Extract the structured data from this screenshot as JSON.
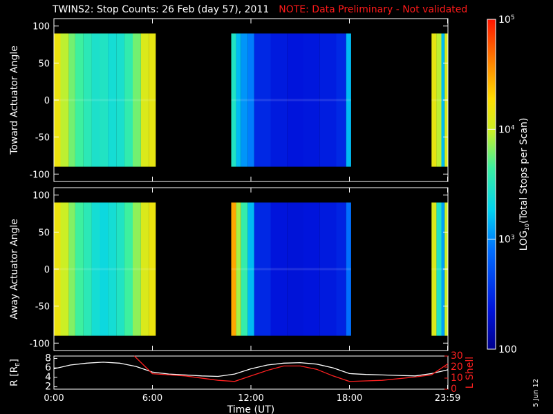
{
  "title": {
    "main": "TWINS2: Stop Counts: 26 Feb (day  57), 2011",
    "note": "NOTE: Data Preliminary - Not validated"
  },
  "stamp": "5 Jun 12",
  "colors": {
    "background": "#000000",
    "axes": "#ffffff",
    "note": "#ff1a1a",
    "r_line": "#ffffff",
    "lshell_line": "#ff2020"
  },
  "chart_data": [
    {
      "type": "heatmap",
      "panel": "top",
      "ylabel": "Toward Actuator Angle",
      "ylim": [
        -110,
        110
      ],
      "yticks": [
        100,
        50,
        0,
        -50,
        -100
      ],
      "xlim_hours": [
        0,
        24
      ],
      "data_yrange": [
        -90,
        90
      ],
      "colorscale": "log",
      "segments": [
        {
          "start": 0.0,
          "end": 6.2,
          "columns": [
            {
              "t": 0.0,
              "v": 15000
            },
            {
              "t": 0.4,
              "v": 9000
            },
            {
              "t": 0.9,
              "v": 6000
            },
            {
              "t": 1.3,
              "v": 4500
            },
            {
              "t": 1.8,
              "v": 3500
            },
            {
              "t": 2.3,
              "v": 2800
            },
            {
              "t": 2.8,
              "v": 3000
            },
            {
              "t": 3.3,
              "v": 2500
            },
            {
              "t": 3.8,
              "v": 2700
            },
            {
              "t": 4.3,
              "v": 3800
            },
            {
              "t": 4.8,
              "v": 6000
            },
            {
              "t": 5.3,
              "v": 12000
            },
            {
              "t": 5.8,
              "v": 14000
            }
          ]
        },
        {
          "start": 10.8,
          "end": 18.1,
          "columns": [
            {
              "t": 10.8,
              "v": 3000
            },
            {
              "t": 11.1,
              "v": 1500
            },
            {
              "t": 11.4,
              "v": 1100
            },
            {
              "t": 11.8,
              "v": 900
            },
            {
              "t": 12.2,
              "v": 300
            },
            {
              "t": 13.2,
              "v": 250
            },
            {
              "t": 14.2,
              "v": 230
            },
            {
              "t": 15.2,
              "v": 240
            },
            {
              "t": 16.2,
              "v": 260
            },
            {
              "t": 17.2,
              "v": 300
            },
            {
              "t": 17.8,
              "v": 1500
            }
          ]
        },
        {
          "start": 23.0,
          "end": 24.0,
          "columns": [
            {
              "t": 23.0,
              "v": 14000
            },
            {
              "t": 23.3,
              "v": 9000
            },
            {
              "t": 23.6,
              "v": 1500
            },
            {
              "t": 23.8,
              "v": 12000
            }
          ]
        }
      ]
    },
    {
      "type": "heatmap",
      "panel": "middle",
      "ylabel": "Away Actuator Angle",
      "ylim": [
        -110,
        110
      ],
      "yticks": [
        100,
        50,
        0,
        -50,
        -100
      ],
      "xlim_hours": [
        0,
        24
      ],
      "data_yrange": [
        -90,
        90
      ],
      "colorscale": "log",
      "segments": [
        {
          "start": 0.0,
          "end": 6.2,
          "columns": [
            {
              "t": 0.0,
              "v": 15000
            },
            {
              "t": 0.4,
              "v": 10000
            },
            {
              "t": 0.9,
              "v": 6500
            },
            {
              "t": 1.3,
              "v": 4500
            },
            {
              "t": 1.8,
              "v": 3500
            },
            {
              "t": 2.3,
              "v": 2500
            },
            {
              "t": 2.8,
              "v": 2200
            },
            {
              "t": 3.3,
              "v": 2500
            },
            {
              "t": 3.8,
              "v": 3000
            },
            {
              "t": 4.3,
              "v": 4500
            },
            {
              "t": 4.8,
              "v": 7000
            },
            {
              "t": 5.3,
              "v": 12000
            },
            {
              "t": 5.8,
              "v": 15000
            }
          ]
        },
        {
          "start": 10.8,
          "end": 18.1,
          "columns": [
            {
              "t": 10.8,
              "v": 30000
            },
            {
              "t": 11.1,
              "v": 8000
            },
            {
              "t": 11.4,
              "v": 4000
            },
            {
              "t": 11.8,
              "v": 1500
            },
            {
              "t": 12.2,
              "v": 300
            },
            {
              "t": 13.2,
              "v": 230
            },
            {
              "t": 14.2,
              "v": 220
            },
            {
              "t": 15.2,
              "v": 230
            },
            {
              "t": 16.2,
              "v": 250
            },
            {
              "t": 17.2,
              "v": 280
            },
            {
              "t": 17.8,
              "v": 800
            }
          ]
        },
        {
          "start": 23.0,
          "end": 24.0,
          "columns": [
            {
              "t": 23.0,
              "v": 12000
            },
            {
              "t": 23.3,
              "v": 3000
            },
            {
              "t": 23.6,
              "v": 1200
            },
            {
              "t": 23.8,
              "v": 10000
            }
          ]
        }
      ]
    },
    {
      "type": "line",
      "panel": "bottom",
      "xlabel": "Time (UT)",
      "xticks": [
        {
          "t": 0,
          "label": "0:00"
        },
        {
          "t": 6,
          "label": "6:00"
        },
        {
          "t": 12,
          "label": "12:00"
        },
        {
          "t": 18,
          "label": "18:00"
        },
        {
          "t": 23.98,
          "label": "23:59"
        }
      ],
      "ylabel_left": "R [R",
      "ylabel_left_sub": "E",
      "ylabel_left_close": "]",
      "yticks_left": [
        8,
        6,
        4,
        2
      ],
      "ylim_left": [
        1.5,
        8.5
      ],
      "ylabel_right": "L Shell",
      "yticks_right": [
        30,
        20,
        10,
        0
      ],
      "ylim_right": [
        0,
        30
      ],
      "series": [
        {
          "axis": "left",
          "points": [
            [
              0,
              5.8
            ],
            [
              1,
              6.6
            ],
            [
              2,
              7.0
            ],
            [
              3,
              7.2
            ],
            [
              4,
              7.0
            ],
            [
              5,
              6.3
            ],
            [
              6,
              5.1
            ],
            [
              7,
              4.7
            ],
            [
              8,
              4.5
            ],
            [
              9,
              4.3
            ],
            [
              10,
              4.2
            ],
            [
              11,
              4.7
            ],
            [
              12,
              5.8
            ],
            [
              13,
              6.6
            ],
            [
              14,
              7.0
            ],
            [
              15,
              7.1
            ],
            [
              16,
              6.8
            ],
            [
              17,
              6.0
            ],
            [
              18,
              4.8
            ],
            [
              19,
              4.6
            ],
            [
              20,
              4.5
            ],
            [
              21,
              4.4
            ],
            [
              22,
              4.3
            ],
            [
              23,
              4.8
            ],
            [
              24,
              5.6
            ]
          ]
        },
        {
          "axis": "right",
          "points": [
            [
              4.9,
              30
            ],
            [
              6,
              14
            ],
            [
              8,
              12
            ],
            [
              10,
              8
            ],
            [
              11,
              7
            ],
            [
              12,
              12
            ],
            [
              13,
              17
            ],
            [
              14,
              21
            ],
            [
              15,
              21
            ],
            [
              16,
              18
            ],
            [
              17,
              12
            ],
            [
              18,
              7
            ],
            [
              20,
              8
            ],
            [
              22,
              11
            ],
            [
              23,
              13
            ],
            [
              24,
              23
            ]
          ]
        }
      ]
    },
    {
      "type": "colorbar",
      "scale": "log",
      "range": [
        100,
        100000
      ],
      "label": "LOG",
      "label_sub": "10",
      "label_rest": "(Total Stops per Scan)",
      "ticks": [
        {
          "v": 100000,
          "base": "10",
          "exp": "5"
        },
        {
          "v": 10000,
          "base": "10",
          "exp": "4"
        },
        {
          "v": 1000,
          "base": "10",
          "exp": "3"
        },
        {
          "v": 100,
          "base": "100",
          "exp": ""
        }
      ]
    }
  ]
}
